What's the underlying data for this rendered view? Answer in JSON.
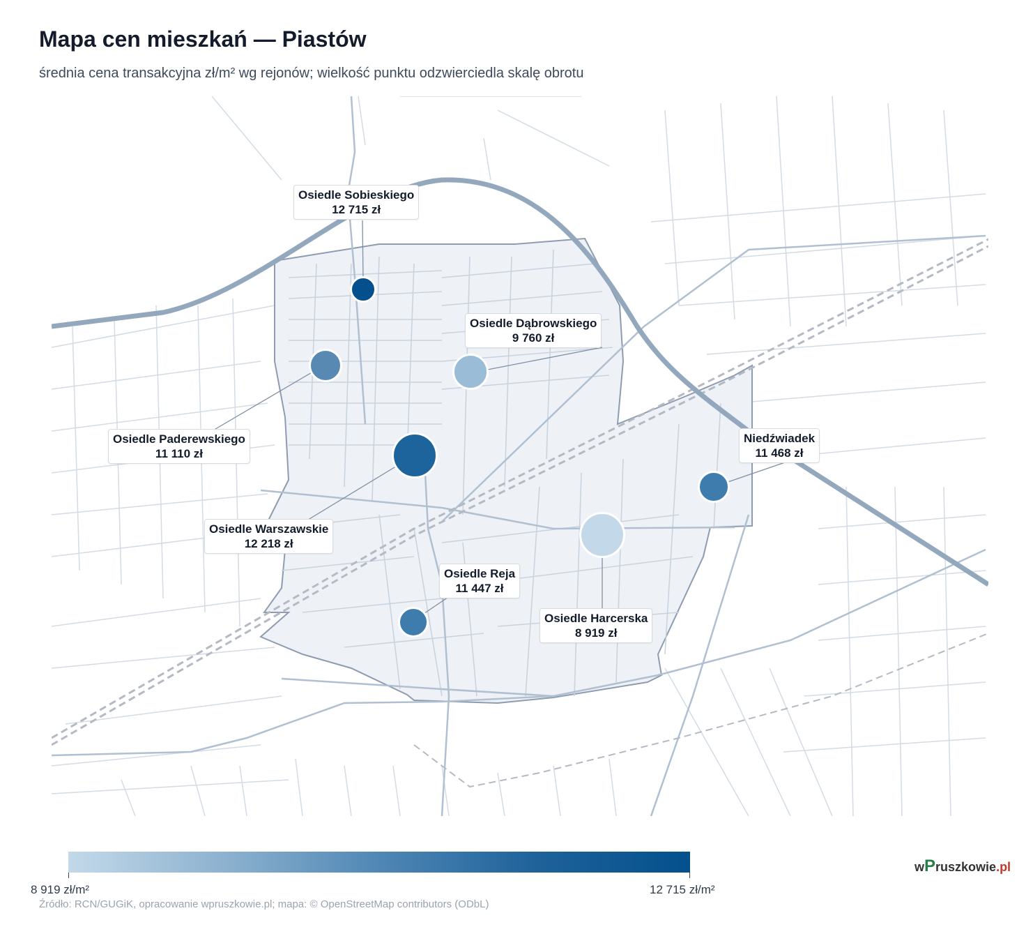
{
  "header": {
    "title": "Mapa cen mieszkań — Piastów",
    "subtitle": "średnia cena transakcyjna zł/m² wg rejonów; wielkość punktu odzwierciedla skalę obrotu"
  },
  "map": {
    "colors": {
      "boundary_fill": "#eef2f7",
      "boundary_stroke": "#8e9cb0",
      "street": "#cbd5df",
      "major_road": "#93a7bd",
      "railway": "#b4b9c4"
    },
    "districts": [
      {
        "name": "Osiedle Sobieskiego",
        "price": "12 715 zł",
        "price_value": 12715,
        "color": "#03508d"
      },
      {
        "name": "Osiedle Dąbrowskiego",
        "price": "9 760 zł",
        "price_value": 9760,
        "color": "#9abcd7"
      },
      {
        "name": "Osiedle Paderewskiego",
        "price": "11 110 zł",
        "price_value": 11110,
        "color": "#5889b2"
      },
      {
        "name": "Osiedle Warszawskie",
        "price": "12 218 zł",
        "price_value": 12218,
        "color": "#1c649b"
      },
      {
        "name": "Niedźwiadek",
        "price": "11 468 zł",
        "price_value": 11468,
        "color": "#3e7cae"
      },
      {
        "name": "Osiedle Reja",
        "price": "11 447 zł",
        "price_value": 11447,
        "color": "#3e7cae"
      },
      {
        "name": "Osiedle Harcerska",
        "price": "8 919 zł",
        "price_value": 8919,
        "color": "#c3d9ea"
      }
    ]
  },
  "legend": {
    "min_label": "8 919 zł/m²",
    "max_label": "12 715 zł/m²",
    "min_color": "#c3d9ea",
    "max_color": "#03508d"
  },
  "footer": {
    "source": "Źródło: RCN/GUGiK, opracowanie wpruszkowie.pl; mapa: © OpenStreetMap contributors (ODbL)",
    "logo_w": "w",
    "logo_p": "P",
    "logo_rest": "ruszkowie",
    "logo_tld": ".pl"
  }
}
